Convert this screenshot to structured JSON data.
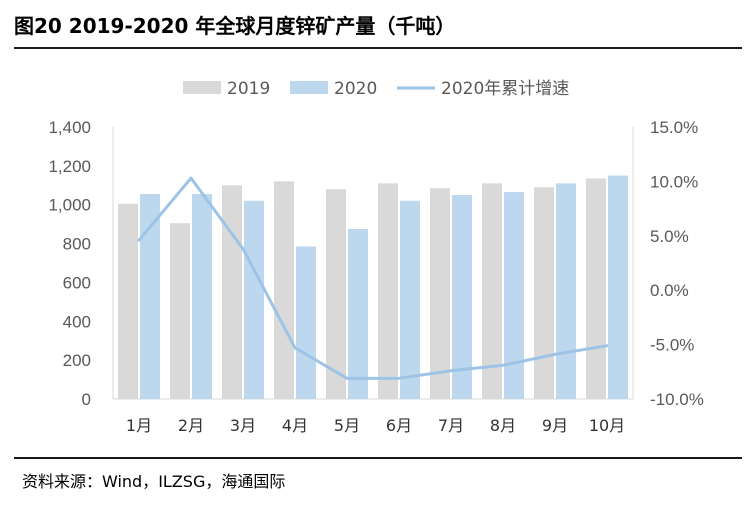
{
  "title": "图20 2019-2020 年全球月度锌矿产量（千吨）",
  "source": "资料来源：Wind，ILZSG，海通国际",
  "colors": {
    "s2019": "#d9d9d9",
    "s2020": "#bdd7ee",
    "growth": "#9dc3e6"
  },
  "chart_data": {
    "type": "bar",
    "categories": [
      "1月",
      "2月",
      "3月",
      "4月",
      "5月",
      "6月",
      "7月",
      "8月",
      "9月",
      "10月"
    ],
    "series": [
      {
        "name": "2019",
        "type": "bar",
        "axis": "left",
        "values": [
          1005,
          905,
          1100,
          1120,
          1080,
          1110,
          1085,
          1110,
          1090,
          1135
        ]
      },
      {
        "name": "2020",
        "type": "bar",
        "axis": "left",
        "values": [
          1055,
          1055,
          1020,
          785,
          875,
          1020,
          1050,
          1065,
          1110,
          1150
        ]
      },
      {
        "name": "2020年累计增速",
        "type": "line",
        "axis": "right",
        "values": [
          4.6,
          10.3,
          3.8,
          -5.3,
          -8.1,
          -8.1,
          -7.4,
          -6.9,
          -5.9,
          -5.1
        ]
      }
    ],
    "left_axis": {
      "min": 0,
      "max": 1400,
      "step": 200,
      "ticks": [
        "0",
        "200",
        "400",
        "600",
        "800",
        "1,000",
        "1,200",
        "1,400"
      ]
    },
    "right_axis": {
      "min": -10,
      "max": 15,
      "step": 5,
      "ticks": [
        "-10.0%",
        "-5.0%",
        "0.0%",
        "5.0%",
        "10.0%",
        "15.0%"
      ]
    },
    "legend_position": "top",
    "grid": false
  }
}
